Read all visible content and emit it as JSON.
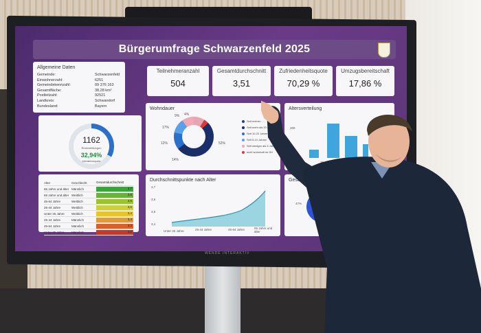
{
  "dashboard": {
    "title": "Bürgerumfrage Schwarzenfeld 2025",
    "general": {
      "title": "Allgemeine Daten",
      "rows": [
        {
          "k": "Gemeinde:",
          "v": "Schwarzenfeld"
        },
        {
          "k": "Einwohnerzahl:",
          "v": "6251"
        },
        {
          "k": "Gemeindekennzahl:",
          "v": "09 376 163"
        },
        {
          "k": "Gesamtfläche:",
          "v": "38,28 km²"
        },
        {
          "k": "Postleitzahl:",
          "v": "92521"
        },
        {
          "k": "Landkreis:",
          "v": "Schwandorf"
        },
        {
          "k": "Bundesland:",
          "v": "Bayern"
        }
      ]
    },
    "kpis": [
      {
        "label": "Teilnehmeranzahl",
        "value": "504"
      },
      {
        "label": "Gesamtdurchschnitt",
        "value": "3,51"
      },
      {
        "label": "Zufriedenheitsquote",
        "value": "70,29 %"
      },
      {
        "label": "Umzugsbereitschaft",
        "value": "17,86 %"
      }
    ],
    "responses": {
      "count": "1162",
      "count_label": "Rückmeldungen",
      "percent": "32,94%",
      "percent_label": "Interaktionsquote",
      "fraction": 0.3294
    },
    "table": {
      "headers": [
        "Alter",
        "Geschlecht",
        "Gesamtdurchschnitt"
      ],
      "rows": [
        {
          "age": "65 Jahre und älter",
          "gender": "Männlich",
          "value": "3,7",
          "color": "#3aa63a"
        },
        {
          "age": "65 Jahre und älter",
          "gender": "Weiblich",
          "value": "3,6",
          "color": "#68b52f"
        },
        {
          "age": "45-64 Jahre",
          "gender": "Weiblich",
          "value": "3,6",
          "color": "#9cc42c"
        },
        {
          "age": "25-44 Jahre",
          "gender": "Weiblich",
          "value": "3,6",
          "color": "#cfd22a"
        },
        {
          "age": "Unter 25 Jahre",
          "gender": "Weiblich",
          "value": "3,4",
          "color": "#e8c52a"
        },
        {
          "age": "25-44 Jahre",
          "gender": "Männlich",
          "value": "3,4",
          "color": "#e59a2a"
        },
        {
          "age": "45-64 Jahre",
          "gender": "Männlich",
          "value": "3,3",
          "color": "#d9602b"
        },
        {
          "age": "Unter 25 Jahre",
          "gender": "Männlich",
          "value": "3,2",
          "color": "#c9372c"
        }
      ]
    },
    "wohndauer": {
      "title": "Wohndauer",
      "labels": [
        "9%",
        "4%",
        "17%",
        "12%",
        "14%",
        "52%"
      ],
      "legend": [
        {
          "label": "Seit meiner ...",
          "color": "#1f3f8f"
        },
        {
          "label": "Seit mehr als 20 Jahren",
          "color": "#1a2f6a"
        },
        {
          "label": "Seit 10-20 Jahren",
          "color": "#2a6fc9"
        },
        {
          "label": "Seit 5-10 Jahren",
          "color": "#5aa0e6"
        },
        {
          "label": "Seit weniger als 5 Jahren",
          "color": "#f0a8b4"
        },
        {
          "label": "nicht wohnhaft im Ort",
          "color": "#d93a3a"
        }
      ]
    },
    "alter": {
      "title": "Altersverteilung",
      "tick": "200",
      "xlabels": [
        "25-44 Jahre",
        "45-64 Jahre"
      ]
    },
    "line": {
      "title": "Durchschnittspunkte nach Alter",
      "yticks": [
        "3,7",
        "3,6",
        "3,5",
        "3,4"
      ],
      "xlabels": [
        "Unter 25 Jahre",
        "25-44 Jahre",
        "45-64 Jahre",
        "65 Jahre und älter"
      ]
    },
    "gender": {
      "title": "Gesch...",
      "pct": "47%"
    },
    "brand": "WENDE INTERAKTIV"
  }
}
